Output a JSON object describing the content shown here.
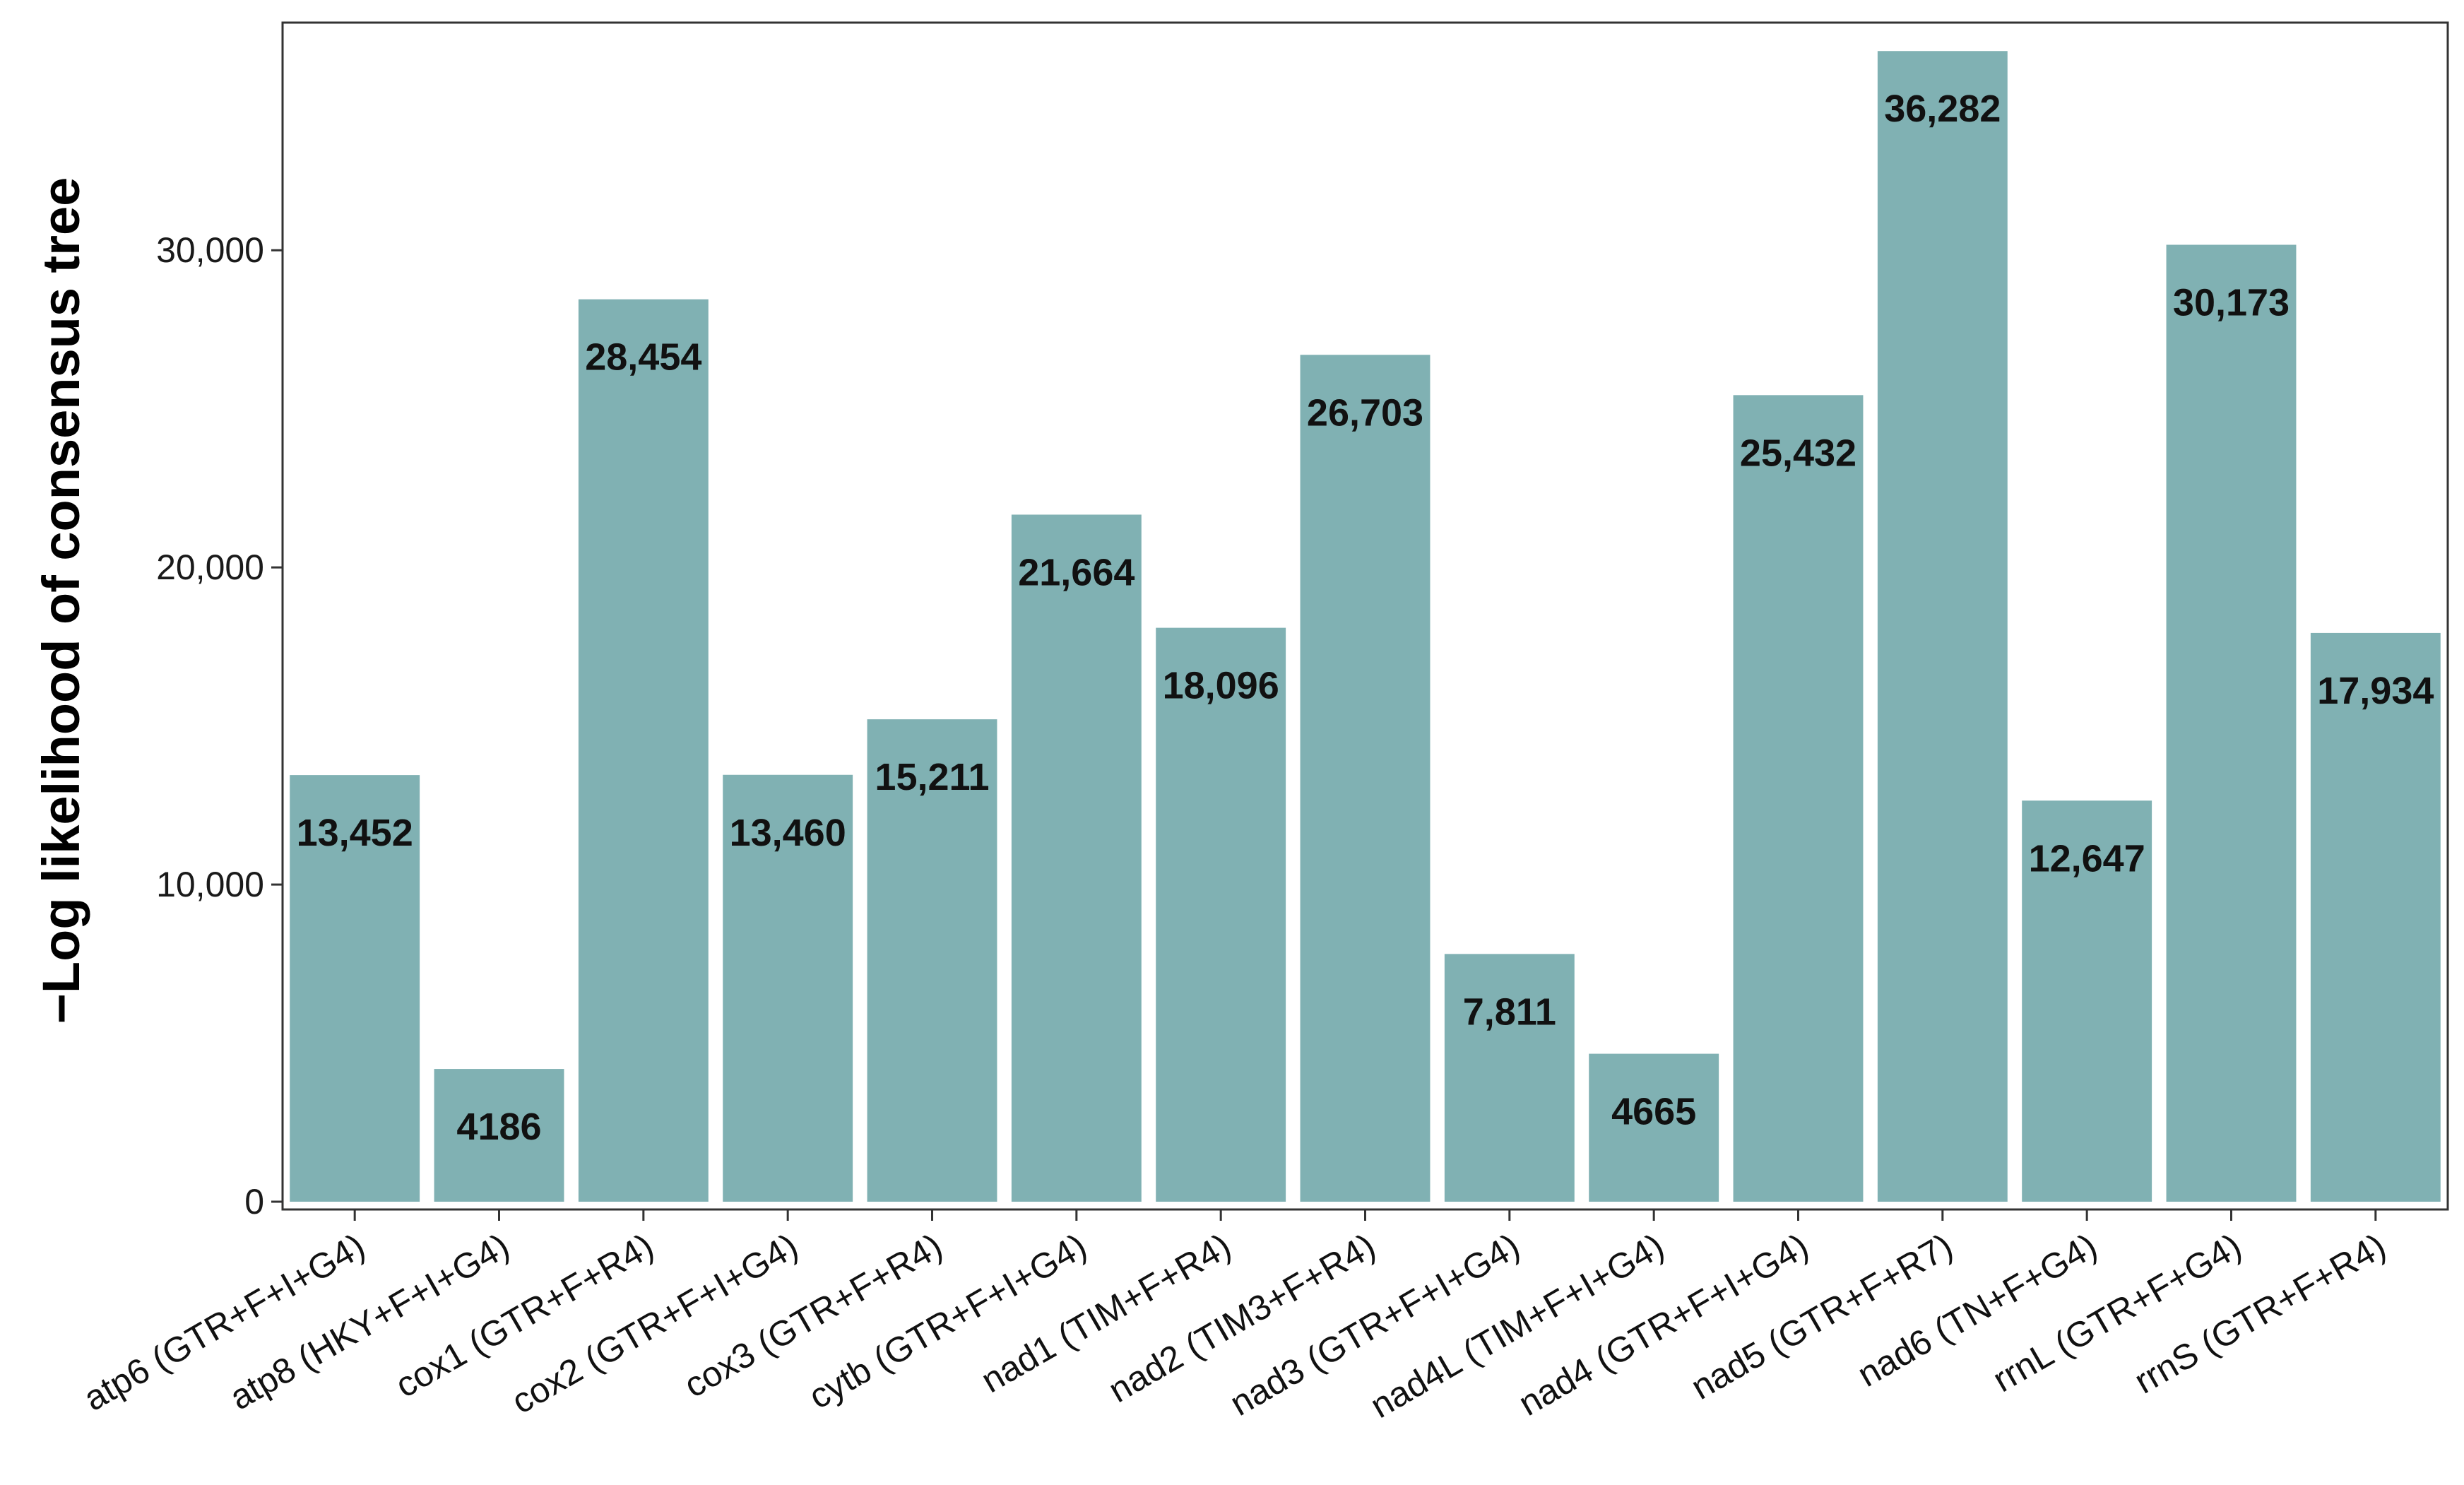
{
  "chart_data": {
    "type": "bar",
    "xlabel": "",
    "ylabel": "−Log likelihood of consensus tree",
    "ylim": [
      0,
      37000
    ],
    "yticks": [
      0,
      10000,
      20000,
      30000
    ],
    "ytick_labels": [
      "0",
      "10,000",
      "20,000",
      "30,000"
    ],
    "grid": false,
    "legend": "none",
    "bar_color": "#80b1b3",
    "categories": [
      "atp6 (GTR+F+I+G4)",
      "atp8 (HKY+F+I+G4)",
      "cox1 (GTR+F+R4)",
      "cox2 (GTR+F+I+G4)",
      "cox3 (GTR+F+R4)",
      "cytb (GTR+F+I+G4)",
      "nad1 (TIM+F+R4)",
      "nad2 (TIM3+F+R4)",
      "nad3 (GTR+F+I+G4)",
      "nad4L (TIM+F+I+G4)",
      "nad4 (GTR+F+I+G4)",
      "nad5 (GTR+F+R7)",
      "nad6 (TN+F+G4)",
      "rrnL (GTR+F+G4)",
      "rrnS (GTR+F+R4)"
    ],
    "values": [
      13452,
      4186,
      28454,
      13460,
      15211,
      21664,
      18096,
      26703,
      7811,
      4665,
      25432,
      36282,
      12647,
      30173,
      17934
    ],
    "value_labels": [
      "13,452",
      "4186",
      "28,454",
      "13,460",
      "15,211",
      "21,664",
      "18,096",
      "26,703",
      "7,811",
      "4665",
      "25,432",
      "36,282",
      "12,647",
      "30,173",
      "17,934"
    ]
  }
}
